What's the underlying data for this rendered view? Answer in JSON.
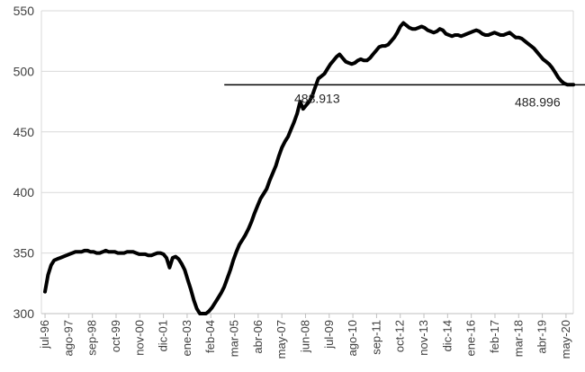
{
  "chart_data": {
    "type": "line",
    "title": "",
    "xlabel": "",
    "ylabel": "",
    "ylim": [
      300,
      550
    ],
    "y_ticks": [
      300,
      350,
      400,
      450,
      500,
      550
    ],
    "grid": "horizontal",
    "x_tick_labels": [
      "jul-96",
      "ago-97",
      "sep-98",
      "oct-99",
      "nov-00",
      "dic-01",
      "ene-03",
      "feb-04",
      "mar-05",
      "abr-06",
      "may-07",
      "jun-08",
      "jul-09",
      "ago-10",
      "sep-11",
      "oct-12",
      "nov-13",
      "dic-14",
      "ene-16",
      "feb-17",
      "mar-18",
      "abr-19",
      "may-20"
    ],
    "series": [
      {
        "values": [
          [
            0,
            318
          ],
          [
            1,
            332
          ],
          [
            2,
            340
          ],
          [
            3,
            344
          ],
          [
            4,
            345
          ],
          [
            5,
            346
          ],
          [
            6,
            347
          ],
          [
            7,
            348
          ],
          [
            8,
            349
          ],
          [
            9,
            350
          ],
          [
            10,
            351
          ],
          [
            11,
            351
          ],
          [
            12,
            351
          ],
          [
            13,
            352
          ],
          [
            14,
            352
          ],
          [
            15,
            351
          ],
          [
            16,
            351
          ],
          [
            17,
            350
          ],
          [
            18,
            350
          ],
          [
            19,
            351
          ],
          [
            20,
            352
          ],
          [
            21,
            351
          ],
          [
            22,
            351
          ],
          [
            23,
            351
          ],
          [
            24,
            350
          ],
          [
            25,
            350
          ],
          [
            26,
            350
          ],
          [
            27,
            351
          ],
          [
            28,
            351
          ],
          [
            29,
            351
          ],
          [
            30,
            350
          ],
          [
            31,
            349
          ],
          [
            32,
            349
          ],
          [
            33,
            349
          ],
          [
            34,
            348
          ],
          [
            35,
            348
          ],
          [
            36,
            349
          ],
          [
            37,
            350
          ],
          [
            38,
            350
          ],
          [
            39,
            349
          ],
          [
            40,
            346
          ],
          [
            41,
            338
          ],
          [
            42,
            346
          ],
          [
            43,
            347
          ],
          [
            44,
            345
          ],
          [
            45,
            341
          ],
          [
            46,
            336
          ],
          [
            47,
            328
          ],
          [
            48,
            320
          ],
          [
            49,
            311
          ],
          [
            50,
            304
          ],
          [
            51,
            300
          ],
          [
            52,
            300
          ],
          [
            53,
            300
          ],
          [
            54,
            302
          ],
          [
            55,
            305
          ],
          [
            56,
            309
          ],
          [
            57,
            313
          ],
          [
            58,
            317
          ],
          [
            59,
            322
          ],
          [
            60,
            329
          ],
          [
            61,
            336
          ],
          [
            62,
            344
          ],
          [
            63,
            351
          ],
          [
            64,
            357
          ],
          [
            65,
            361
          ],
          [
            66,
            365
          ],
          [
            67,
            370
          ],
          [
            68,
            376
          ],
          [
            69,
            383
          ],
          [
            70,
            389
          ],
          [
            71,
            395
          ],
          [
            72,
            399
          ],
          [
            73,
            403
          ],
          [
            74,
            410
          ],
          [
            75,
            416
          ],
          [
            76,
            422
          ],
          [
            77,
            430
          ],
          [
            78,
            437
          ],
          [
            79,
            442
          ],
          [
            80,
            446
          ],
          [
            81,
            452
          ],
          [
            82,
            458
          ],
          [
            83,
            465
          ],
          [
            84,
            475
          ],
          [
            85,
            469
          ],
          [
            86,
            472
          ],
          [
            87,
            475
          ],
          [
            88,
            480
          ],
          [
            89,
            487
          ],
          [
            90,
            494
          ],
          [
            91,
            496
          ],
          [
            92,
            498
          ],
          [
            93,
            502
          ],
          [
            94,
            506
          ],
          [
            95,
            509
          ],
          [
            96,
            512
          ],
          [
            97,
            514
          ],
          [
            98,
            511
          ],
          [
            99,
            508
          ],
          [
            100,
            507
          ],
          [
            101,
            506
          ],
          [
            102,
            507
          ],
          [
            103,
            509
          ],
          [
            104,
            510
          ],
          [
            105,
            509
          ],
          [
            106,
            509
          ],
          [
            107,
            511
          ],
          [
            108,
            514
          ],
          [
            109,
            517
          ],
          [
            110,
            520
          ],
          [
            111,
            521
          ],
          [
            112,
            521
          ],
          [
            113,
            522
          ],
          [
            114,
            525
          ],
          [
            115,
            528
          ],
          [
            116,
            532
          ],
          [
            117,
            537
          ],
          [
            118,
            540
          ],
          [
            119,
            538
          ],
          [
            120,
            536
          ],
          [
            121,
            535
          ],
          [
            122,
            535
          ],
          [
            123,
            536
          ],
          [
            124,
            537
          ],
          [
            125,
            536
          ],
          [
            126,
            534
          ],
          [
            127,
            533
          ],
          [
            128,
            532
          ],
          [
            129,
            533
          ],
          [
            130,
            535
          ],
          [
            131,
            534
          ],
          [
            132,
            531
          ],
          [
            133,
            530
          ],
          [
            134,
            529
          ],
          [
            135,
            530
          ],
          [
            136,
            530
          ],
          [
            137,
            529
          ],
          [
            138,
            530
          ],
          [
            139,
            531
          ],
          [
            140,
            532
          ],
          [
            141,
            533
          ],
          [
            142,
            534
          ],
          [
            143,
            533
          ],
          [
            144,
            531
          ],
          [
            145,
            530
          ],
          [
            146,
            530
          ],
          [
            147,
            531
          ],
          [
            148,
            532
          ],
          [
            149,
            531
          ],
          [
            150,
            530
          ],
          [
            151,
            530
          ],
          [
            152,
            531
          ],
          [
            153,
            532
          ],
          [
            154,
            530
          ],
          [
            155,
            528
          ],
          [
            156,
            528
          ],
          [
            157,
            527
          ],
          [
            158,
            525
          ],
          [
            159,
            523
          ],
          [
            160,
            521
          ],
          [
            161,
            519
          ],
          [
            162,
            516
          ],
          [
            163,
            513
          ],
          [
            164,
            510
          ],
          [
            165,
            508
          ],
          [
            166,
            506
          ],
          [
            167,
            503
          ],
          [
            168,
            499
          ],
          [
            169,
            495
          ],
          [
            170,
            492
          ],
          [
            171,
            490
          ],
          [
            172,
            489
          ],
          [
            173,
            489
          ],
          [
            174,
            489
          ]
        ]
      }
    ],
    "reference_line": {
      "y": 488.9,
      "from_month": 60
    },
    "annotations": [
      "488.913",
      "488.996"
    ]
  }
}
